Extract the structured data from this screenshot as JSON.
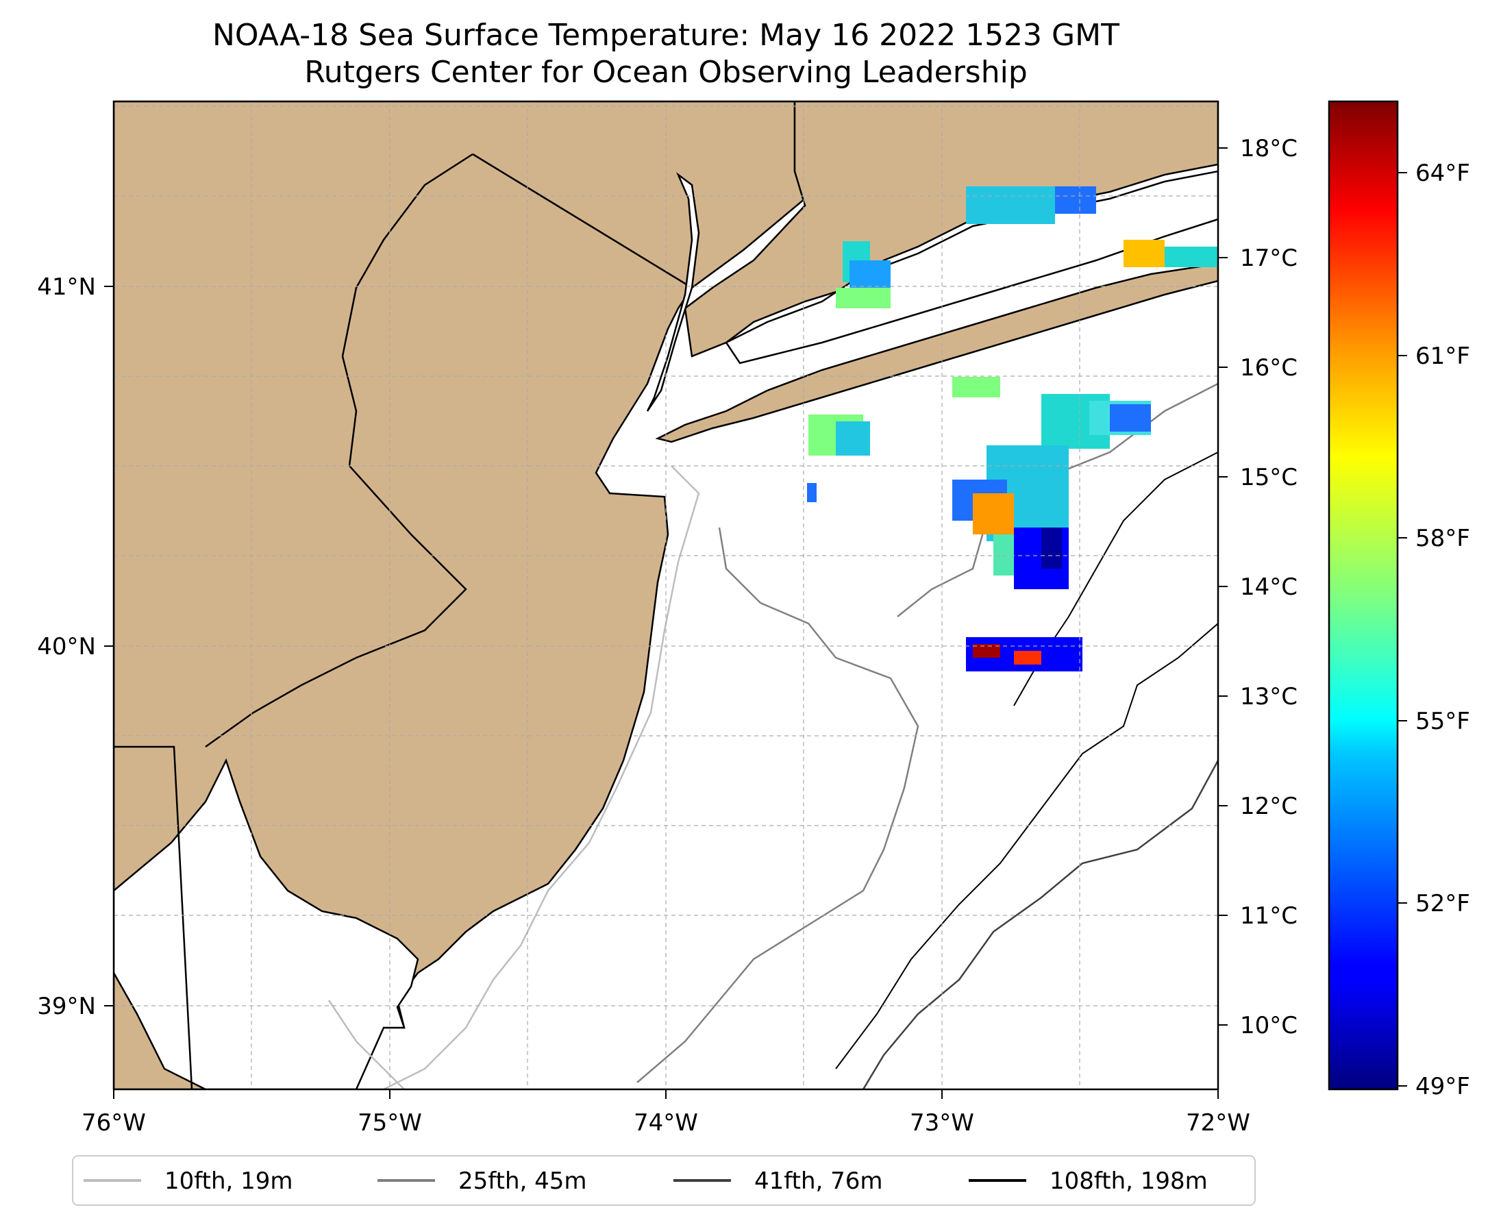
{
  "title_line1": "NOAA-18 Sea Surface Temperature: May 16 2022 1523 GMT",
  "title_line2": "Rutgers Center for Ocean Observing Leadership",
  "map": {
    "lon_range": [
      -76,
      -72
    ],
    "lat_range": [
      38.75,
      41.5
    ],
    "x_ticks": [
      "76°W",
      "75°W",
      "74°W",
      "73°W",
      "72°W"
    ],
    "y_ticks": [
      "41°N",
      "40°N",
      "39°N"
    ],
    "gridlines": true,
    "land_color": "#d2b48c",
    "water_color": "#ffffff"
  },
  "colorbar": {
    "colormap": "jet",
    "celsius_ticks": [
      "18°C",
      "17°C",
      "16°C",
      "15°C",
      "14°C",
      "13°C",
      "12°C",
      "11°C",
      "10°C"
    ],
    "fahrenheit_ticks": [
      "64°F",
      "61°F",
      "58°F",
      "55°F",
      "52°F",
      "49°F"
    ],
    "range_c": [
      9.5,
      18.5
    ]
  },
  "legend": {
    "placement": "bottom-center",
    "items": [
      {
        "label": "10fth, 19m",
        "color": "#bdbdbd"
      },
      {
        "label": "25fth, 45m",
        "color": "#808080"
      },
      {
        "label": "41fth, 76m",
        "color": "#404040"
      },
      {
        "label": "108fth, 198m",
        "color": "#000000"
      }
    ]
  }
}
